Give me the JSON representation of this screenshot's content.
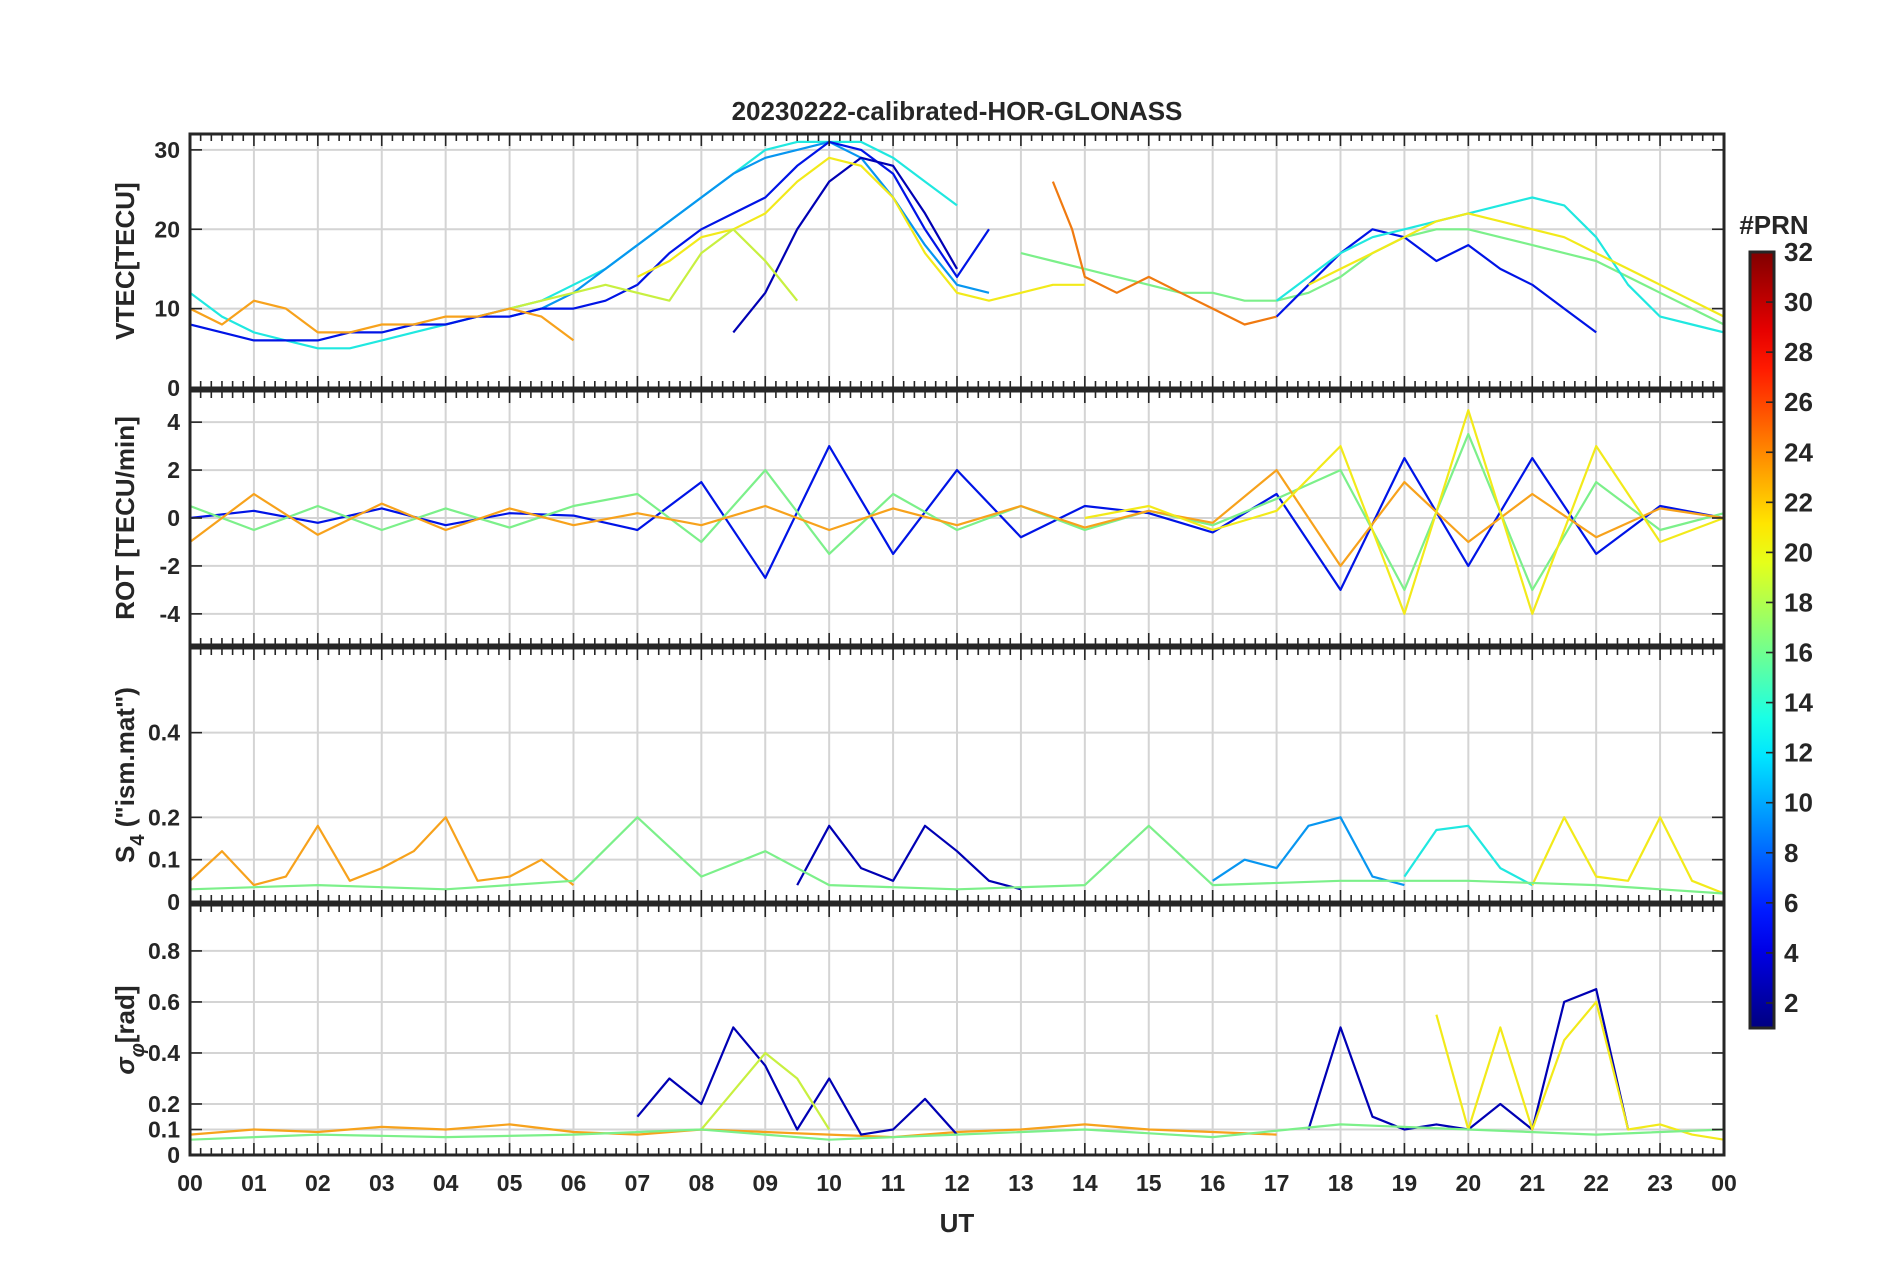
{
  "title": "20230222-calibrated-HOR-GLONASS",
  "xlabel": "UT",
  "x_tick_labels": [
    "00",
    "01",
    "02",
    "03",
    "04",
    "05",
    "06",
    "07",
    "08",
    "09",
    "10",
    "11",
    "12",
    "13",
    "14",
    "15",
    "16",
    "17",
    "18",
    "19",
    "20",
    "21",
    "22",
    "23",
    "00"
  ],
  "colorbar": {
    "title": "#PRN",
    "range": [
      1,
      32
    ],
    "tick_labels": [
      "2",
      "4",
      "6",
      "8",
      "10",
      "12",
      "14",
      "16",
      "18",
      "20",
      "22",
      "24",
      "26",
      "28",
      "30",
      "32"
    ],
    "colormap": "jet"
  },
  "panel_labels": {
    "vtec": "VTEC[TECU]",
    "rot": "ROT [TECU/min]",
    "s4": "S_4 (\"ism.mat\")",
    "sigma": "σ_φ[rad]"
  },
  "colors": {
    "prn_2": "#0000B4",
    "prn_3": "#0014E6",
    "prn_9": "#0896F0",
    "prn_13": "#20E8E0",
    "prn_16": "#7CF08A",
    "prn_18": "#C8F040",
    "prn_20": "#F2EA1A",
    "prn_22": "#F7A21C",
    "prn_23": "#F07A10"
  },
  "chart_data": [
    {
      "type": "line",
      "panel": "vtec",
      "xlim": [
        0,
        24
      ],
      "ylim": [
        0,
        32
      ],
      "yticks": [
        0,
        10,
        20,
        30
      ],
      "grid": true,
      "series": [
        {
          "prn": 13,
          "x": [
            0,
            0.5,
            1,
            1.5,
            2,
            2.5,
            3,
            3.5,
            4,
            4.5,
            5,
            5.5,
            6,
            6.5,
            7,
            7.5,
            8,
            8.5,
            9,
            9.5,
            10,
            10.5,
            11,
            11.5,
            12
          ],
          "y": [
            12,
            9,
            7,
            6,
            5,
            5,
            6,
            7,
            8,
            9,
            10,
            11,
            13,
            15,
            18,
            21,
            24,
            27,
            30,
            31,
            31,
            31,
            29,
            26,
            23
          ]
        },
        {
          "prn": 9,
          "x": [
            5,
            5.5,
            6,
            6.5,
            7,
            7.5,
            8,
            8.5,
            9,
            9.5,
            10,
            10.5,
            11,
            11.5,
            12,
            12.5
          ],
          "y": [
            9,
            10,
            12,
            15,
            18,
            21,
            24,
            27,
            29,
            30,
            31,
            29,
            24,
            18,
            13,
            12
          ]
        },
        {
          "prn": 3,
          "x": [
            0,
            0.5,
            1,
            1.5,
            2,
            2.5,
            3,
            3.5,
            4,
            4.5,
            5,
            5.5,
            6,
            6.5,
            7,
            7.5,
            8,
            8.5,
            9,
            9.5,
            10,
            10.5,
            11,
            11.5,
            12,
            12.5
          ],
          "y": [
            8,
            7,
            6,
            6,
            6,
            7,
            7,
            8,
            8,
            9,
            9,
            10,
            10,
            11,
            13,
            17,
            20,
            22,
            24,
            28,
            31,
            30,
            27,
            20,
            14,
            20
          ]
        },
        {
          "prn": 2,
          "x": [
            8.5,
            9,
            9.5,
            10,
            10.5,
            11,
            11.5,
            12
          ],
          "y": [
            7,
            12,
            20,
            26,
            29,
            28,
            22,
            15
          ]
        },
        {
          "prn": 20,
          "x": [
            7,
            7.5,
            8,
            8.5,
            9,
            9.5,
            10,
            10.5,
            11,
            11.5,
            12,
            12.5,
            13,
            13.5,
            14
          ],
          "y": [
            14,
            16,
            19,
            20,
            22,
            26,
            29,
            28,
            24,
            17,
            12,
            11,
            12,
            13,
            13
          ]
        },
        {
          "prn": 18,
          "x": [
            5,
            5.5,
            6,
            6.5,
            7,
            7.5,
            8,
            8.5,
            9,
            9.5
          ],
          "y": [
            10,
            11,
            12,
            13,
            12,
            11,
            17,
            20,
            16,
            11
          ]
        },
        {
          "prn": 16,
          "x": [
            13,
            13.5,
            14,
            14.5,
            15,
            15.5,
            16,
            16.5,
            17,
            17.5,
            18,
            18.5,
            19,
            19.5,
            20,
            20.5,
            21,
            21.5,
            22,
            22.5,
            23,
            23.5,
            24
          ],
          "y": [
            17,
            16,
            15,
            14,
            13,
            12,
            12,
            11,
            11,
            12,
            14,
            17,
            19,
            20,
            20,
            19,
            18,
            17,
            16,
            14,
            12,
            10,
            8
          ]
        },
        {
          "prn": 22,
          "x": [
            0,
            0.5,
            1,
            1.5,
            2,
            2.5,
            3,
            3.5,
            4,
            4.5,
            5,
            5.5,
            6
          ],
          "y": [
            10,
            8,
            11,
            10,
            7,
            7,
            8,
            8,
            9,
            9,
            10,
            9,
            6
          ]
        },
        {
          "prn": 23,
          "x": [
            13.5,
            13.8,
            14,
            14.5,
            15,
            15.5,
            16,
            16.5,
            17
          ],
          "y": [
            26,
            20,
            14,
            12,
            14,
            12,
            10,
            8,
            9
          ]
        },
        {
          "prn": 3,
          "x": [
            17,
            17.5,
            18,
            18.5,
            19,
            19.5,
            20,
            20.5,
            21,
            21.5,
            22
          ],
          "y": [
            9,
            13,
            17,
            20,
            19,
            16,
            18,
            15,
            13,
            10,
            7
          ]
        },
        {
          "prn": 13,
          "x": [
            17,
            17.5,
            18,
            18.5,
            19,
            19.5,
            20,
            20.5,
            21,
            21.5,
            22,
            22.5,
            23,
            23.5,
            24
          ],
          "y": [
            11,
            14,
            17,
            19,
            20,
            21,
            22,
            23,
            24,
            23,
            19,
            13,
            9,
            8,
            7
          ]
        },
        {
          "prn": 20,
          "x": [
            17.5,
            18,
            18.5,
            19,
            19.5,
            20,
            20.5,
            21,
            21.5,
            22,
            22.5,
            23,
            23.5,
            24
          ],
          "y": [
            13,
            15,
            17,
            19,
            21,
            22,
            21,
            20,
            19,
            17,
            15,
            13,
            11,
            9
          ]
        }
      ]
    },
    {
      "type": "line",
      "panel": "rot",
      "xlim": [
        0,
        24
      ],
      "ylim": [
        -5.3,
        5.3
      ],
      "yticks": [
        -4,
        -2,
        0,
        2,
        4
      ],
      "grid": true,
      "series": [
        {
          "prn": 3,
          "x": [
            0,
            1,
            2,
            3,
            4,
            5,
            6,
            7,
            8,
            9,
            10,
            11,
            12,
            13,
            14,
            15,
            16,
            17,
            18,
            19,
            20,
            21,
            22,
            23,
            24
          ],
          "y": [
            0,
            0.3,
            -0.2,
            0.4,
            -0.3,
            0.2,
            0.1,
            -0.5,
            1.5,
            -2.5,
            3,
            -1.5,
            2,
            -0.8,
            0.5,
            0.2,
            -0.6,
            1,
            -3,
            2.5,
            -2,
            2.5,
            -1.5,
            0.5,
            0
          ]
        },
        {
          "prn": 16,
          "x": [
            0,
            1,
            2,
            3,
            4,
            5,
            6,
            7,
            8,
            9,
            10,
            11,
            12,
            13,
            14,
            15,
            16,
            17,
            18,
            19,
            20,
            21,
            22,
            23,
            24
          ],
          "y": [
            0.5,
            -0.5,
            0.5,
            -0.5,
            0.4,
            -0.4,
            0.5,
            1,
            -1,
            2,
            -1.5,
            1,
            -0.5,
            0.5,
            -0.5,
            0.3,
            -0.3,
            0.8,
            2,
            -3,
            3.5,
            -3,
            1.5,
            -0.5,
            0.2
          ]
        },
        {
          "prn": 22,
          "x": [
            0,
            1,
            2,
            3,
            4,
            5,
            6,
            7,
            8,
            9,
            10,
            11,
            12,
            13,
            14,
            15,
            16,
            17,
            18,
            19,
            20,
            21,
            22,
            23,
            24
          ],
          "y": [
            -1,
            1,
            -0.7,
            0.6,
            -0.5,
            0.4,
            -0.3,
            0.2,
            -0.3,
            0.5,
            -0.5,
            0.4,
            -0.3,
            0.5,
            -0.4,
            0.3,
            -0.2,
            2,
            -2,
            1.5,
            -1,
            1,
            -0.8,
            0.4,
            0
          ]
        },
        {
          "prn": 20,
          "x": [
            14,
            15,
            16,
            17,
            18,
            19,
            20,
            21,
            22,
            23,
            24
          ],
          "y": [
            0,
            0.5,
            -0.5,
            0.3,
            3,
            -4,
            4.5,
            -4,
            3,
            -1,
            0
          ]
        }
      ]
    },
    {
      "type": "line",
      "panel": "s4",
      "xlim": [
        0,
        24
      ],
      "ylim": [
        0,
        0.6
      ],
      "yticks": [
        0,
        0.1,
        0.2,
        0.4
      ],
      "grid": true,
      "series": [
        {
          "prn": 22,
          "x": [
            0,
            0.5,
            1,
            1.5,
            2,
            2.5,
            3,
            3.5,
            4,
            4.5,
            5,
            5.5,
            6
          ],
          "y": [
            0.05,
            0.12,
            0.04,
            0.06,
            0.18,
            0.05,
            0.08,
            0.12,
            0.2,
            0.05,
            0.06,
            0.1,
            0.04
          ]
        },
        {
          "prn": 2,
          "x": [
            9.5,
            10,
            10.5,
            11,
            11.5,
            12,
            12.5,
            13
          ],
          "y": [
            0.04,
            0.18,
            0.08,
            0.05,
            0.18,
            0.12,
            0.05,
            0.03
          ]
        },
        {
          "prn": 9,
          "x": [
            16,
            16.5,
            17,
            17.5,
            18,
            18.5,
            19
          ],
          "y": [
            0.05,
            0.1,
            0.08,
            0.18,
            0.2,
            0.06,
            0.04
          ]
        },
        {
          "prn": 13,
          "x": [
            19,
            19.5,
            20,
            20.5,
            21
          ],
          "y": [
            0.06,
            0.17,
            0.18,
            0.08,
            0.04
          ]
        },
        {
          "prn": 20,
          "x": [
            21,
            21.5,
            22,
            22.5,
            23,
            23.5,
            24
          ],
          "y": [
            0.04,
            0.2,
            0.06,
            0.05,
            0.2,
            0.05,
            0.02
          ]
        },
        {
          "prn": 16,
          "x": [
            0,
            2,
            4,
            6,
            7,
            8,
            9,
            10,
            12,
            14,
            15,
            16,
            18,
            20,
            22,
            24
          ],
          "y": [
            0.03,
            0.04,
            0.03,
            0.05,
            0.2,
            0.06,
            0.12,
            0.04,
            0.03,
            0.04,
            0.18,
            0.04,
            0.05,
            0.05,
            0.04,
            0.02
          ]
        }
      ]
    },
    {
      "type": "line",
      "panel": "sigma",
      "xlim": [
        0,
        24
      ],
      "ylim": [
        0,
        0.98
      ],
      "yticks": [
        0,
        0.1,
        0.2,
        0.4,
        0.6,
        0.8
      ],
      "grid": true,
      "series": [
        {
          "prn": 22,
          "x": [
            0,
            1,
            2,
            3,
            4,
            5,
            6,
            7,
            8,
            9,
            10,
            11,
            12,
            13,
            14,
            15,
            16,
            17
          ],
          "y": [
            0.08,
            0.1,
            0.09,
            0.11,
            0.1,
            0.12,
            0.09,
            0.08,
            0.1,
            0.09,
            0.08,
            0.07,
            0.09,
            0.1,
            0.12,
            0.1,
            0.09,
            0.08
          ]
        },
        {
          "prn": 2,
          "x": [
            7,
            7.5,
            8,
            8.5,
            9,
            9.5,
            10,
            10.5,
            11,
            11.5,
            12
          ],
          "y": [
            0.15,
            0.3,
            0.2,
            0.5,
            0.35,
            0.1,
            0.3,
            0.08,
            0.1,
            0.22,
            0.08
          ]
        },
        {
          "prn": 18,
          "x": [
            8,
            8.5,
            9,
            9.5,
            10
          ],
          "y": [
            0.1,
            0.25,
            0.4,
            0.3,
            0.1
          ]
        },
        {
          "prn": 2,
          "x": [
            17.5,
            18,
            18.5,
            19,
            19.5,
            20,
            20.5,
            21,
            21.5,
            22,
            22.5
          ],
          "y": [
            0.1,
            0.5,
            0.15,
            0.1,
            0.12,
            0.1,
            0.2,
            0.1,
            0.6,
            0.65,
            0.1
          ]
        },
        {
          "prn": 20,
          "x": [
            19.5,
            20,
            20.5,
            21,
            21.5,
            22,
            22.5,
            23,
            23.5,
            24
          ],
          "y": [
            0.55,
            0.1,
            0.5,
            0.1,
            0.45,
            0.6,
            0.1,
            0.12,
            0.08,
            0.06
          ]
        },
        {
          "prn": 16,
          "x": [
            0,
            2,
            4,
            6,
            8,
            10,
            12,
            14,
            16,
            18,
            20,
            22,
            24
          ],
          "y": [
            0.06,
            0.08,
            0.07,
            0.08,
            0.1,
            0.06,
            0.08,
            0.1,
            0.07,
            0.12,
            0.1,
            0.08,
            0.1
          ]
        }
      ]
    }
  ]
}
